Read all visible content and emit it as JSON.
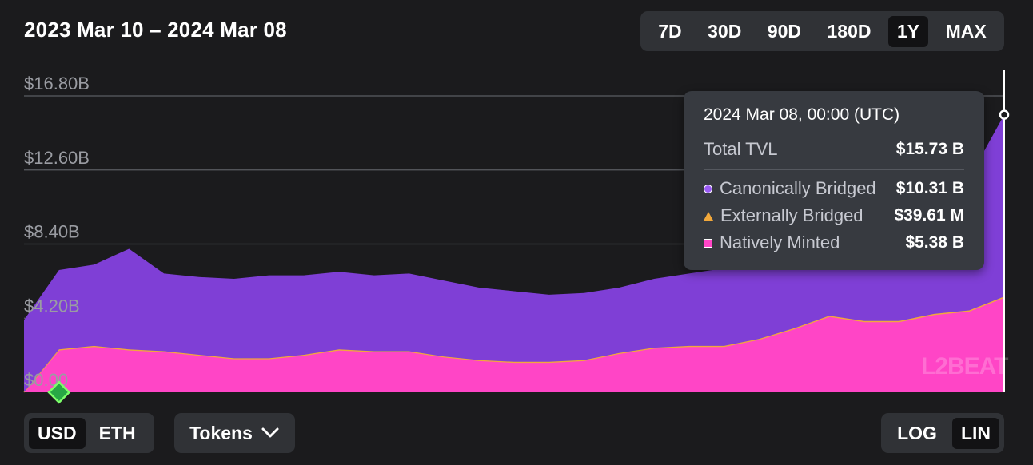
{
  "header": {
    "title": "2023 Mar 10 – 2024 Mar 08",
    "ranges": [
      {
        "label": "7D",
        "active": false
      },
      {
        "label": "30D",
        "active": false
      },
      {
        "label": "90D",
        "active": false
      },
      {
        "label": "180D",
        "active": false
      },
      {
        "label": "1Y",
        "active": true
      },
      {
        "label": "MAX",
        "active": false
      }
    ]
  },
  "tooltip": {
    "date": "2024 Mar 08, 00:00 (UTC)",
    "total_label": "Total TVL",
    "total_value": "$15.73 B",
    "rows": [
      {
        "label": "Canonically Bridged",
        "value": "$10.31 B",
        "marker": "circle"
      },
      {
        "label": "Externally Bridged",
        "value": "$39.61 M",
        "marker": "triangle"
      },
      {
        "label": "Natively Minted",
        "value": "$5.38 B",
        "marker": "square"
      }
    ]
  },
  "controls": {
    "unit_options": [
      {
        "label": "USD",
        "active": true
      },
      {
        "label": "ETH",
        "active": false
      }
    ],
    "tokens_label": "Tokens",
    "scale_options": [
      {
        "label": "LOG",
        "active": false
      },
      {
        "label": "LIN",
        "active": true
      }
    ]
  },
  "watermark": "L2BEAT",
  "colors": {
    "canonical": "#7f3fd6",
    "external": "#f2a83b",
    "native": "#ff45c6",
    "background": "#1b1b1d"
  },
  "chart_data": {
    "type": "area",
    "stacked": true,
    "x_range": [
      "2023-03-10",
      "2024-03-08"
    ],
    "ylim": [
      0,
      16.8
    ],
    "y_unit": "B USD",
    "y_ticks": [
      "$0.00",
      "$4.20B",
      "$8.40B",
      "$12.60B",
      "$16.80B"
    ],
    "y_tick_values": [
      0,
      4.2,
      8.4,
      12.6,
      16.8
    ],
    "grid": true,
    "x": [
      "2023-03-10",
      "2023-03-23",
      "2023-04-05",
      "2023-04-18",
      "2023-05-01",
      "2023-05-14",
      "2023-05-27",
      "2023-06-09",
      "2023-06-22",
      "2023-07-05",
      "2023-07-18",
      "2023-07-31",
      "2023-08-13",
      "2023-08-26",
      "2023-09-08",
      "2023-09-21",
      "2023-10-04",
      "2023-10-17",
      "2023-10-30",
      "2023-11-12",
      "2023-11-25",
      "2023-12-08",
      "2023-12-21",
      "2024-01-03",
      "2024-01-16",
      "2024-01-29",
      "2024-02-11",
      "2024-02-24",
      "2024-03-08"
    ],
    "series": [
      {
        "name": "Natively Minted",
        "values": [
          0,
          2.4,
          2.6,
          2.4,
          2.3,
          2.1,
          1.9,
          1.9,
          2.1,
          2.4,
          2.3,
          2.3,
          2.0,
          1.8,
          1.7,
          1.7,
          1.8,
          2.2,
          2.5,
          2.6,
          2.6,
          3.0,
          3.6,
          4.3,
          4.0,
          4.0,
          4.4,
          4.6,
          5.38
        ]
      },
      {
        "name": "Externally Bridged",
        "values": [
          0,
          0.03,
          0.03,
          0.03,
          0.03,
          0.03,
          0.03,
          0.03,
          0.03,
          0.03,
          0.03,
          0.03,
          0.03,
          0.03,
          0.03,
          0.03,
          0.03,
          0.03,
          0.03,
          0.03,
          0.03,
          0.03,
          0.03,
          0.04,
          0.04,
          0.04,
          0.04,
          0.04,
          0.04
        ]
      },
      {
        "name": "Canonically Bridged",
        "values": [
          4.1,
          4.5,
          4.6,
          5.7,
          4.4,
          4.4,
          4.5,
          4.7,
          4.5,
          4.4,
          4.3,
          4.4,
          4.3,
          4.1,
          4.0,
          3.8,
          3.8,
          3.7,
          3.9,
          4.1,
          4.4,
          4.6,
          4.6,
          4.7,
          5.2,
          5.8,
          6.4,
          7.5,
          10.31
        ]
      }
    ],
    "highlight": {
      "x": "2024-03-08",
      "total": 15.73
    }
  }
}
